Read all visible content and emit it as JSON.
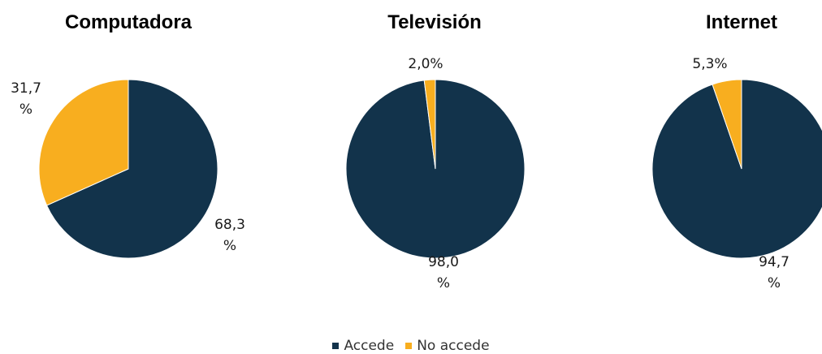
{
  "colors": {
    "accede": "#12334B",
    "no_accede": "#F8AE1F"
  },
  "legend": [
    {
      "label": "Accede",
      "color": "#12334B"
    },
    {
      "label": "No accede",
      "color": "#F8AE1F"
    }
  ],
  "chart_data": [
    {
      "type": "pie",
      "title": "Computadora",
      "series": [
        {
          "name": "Accede",
          "value": 68.3,
          "label": "68,3 %"
        },
        {
          "name": "No accede",
          "value": 31.7,
          "label": "31,7 %"
        }
      ]
    },
    {
      "type": "pie",
      "title": "Televisión",
      "series": [
        {
          "name": "Accede",
          "value": 98.0,
          "label": "98,0 %"
        },
        {
          "name": "No accede",
          "value": 2.0,
          "label": "2,0%"
        }
      ]
    },
    {
      "type": "pie",
      "title": "Internet",
      "series": [
        {
          "name": "Accede",
          "value": 94.7,
          "label": "94,7 %"
        },
        {
          "name": "No accede",
          "value": 5.3,
          "label": "5,3%"
        }
      ]
    }
  ]
}
